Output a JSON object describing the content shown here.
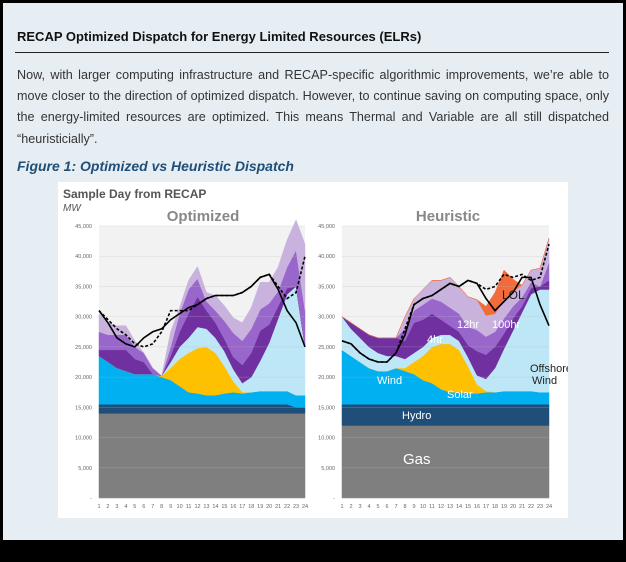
{
  "section_title": "RECAP Optimized Dispatch for Energy Limited Resources (ELRs)",
  "body_text": "Now, with larger computing infrastructure and RECAP-specific algorithmic improvements, we’re able to move closer to the direction of optimized dispatch. However, to continue saving on computing space, only the energy-limited resources are optimized. This means Thermal and Variable are all still dispatched “heuristicially”.",
  "figure_caption": "Figure 1: Optimized vs Heuristic Dispatch",
  "figure": {
    "heading": "Sample Day from RECAP",
    "unit": "MW",
    "colors": {
      "gas": "#7f7f7f",
      "hydro": "#1f4e79",
      "wind": "#00b0f0",
      "solar": "#ffc000",
      "offshore": "#bde6f7",
      "h4": "#7030a0",
      "h12": "#9966cc",
      "h100": "#c9b3de",
      "lol": "#f26b3a",
      "load": "#000000"
    }
  },
  "chart_data": [
    {
      "type": "area",
      "title": "Optimized",
      "ylabel": "MW",
      "ylim": [
        0,
        45000
      ],
      "yticks": [
        "45,000",
        "40,000",
        "35,000",
        "30,000",
        "25,000",
        "20,000",
        "15,000",
        "10,000",
        "5,000",
        "-"
      ],
      "x": [
        1,
        2,
        3,
        4,
        5,
        6,
        7,
        8,
        9,
        10,
        11,
        12,
        13,
        14,
        15,
        16,
        17,
        18,
        19,
        20,
        21,
        22,
        23,
        24
      ],
      "x_labels": [
        "1",
        "2",
        "3",
        "4",
        "5",
        "6",
        "7",
        "8",
        "9",
        "10",
        "11",
        "12",
        "13",
        "14",
        "15",
        "16",
        "17",
        "18",
        "19",
        "20",
        "21",
        "22",
        "23",
        "24"
      ],
      "series": [
        {
          "key": "gas",
          "values": [
            14000,
            14000,
            14000,
            14000,
            14000,
            14000,
            14000,
            14000,
            14000,
            14000,
            14000,
            14000,
            14000,
            14000,
            14000,
            14000,
            14000,
            14000,
            14000,
            14000,
            14000,
            14000,
            14000,
            14000
          ]
        },
        {
          "key": "hydro",
          "values": [
            1500,
            1500,
            1500,
            1500,
            1500,
            1500,
            1500,
            1500,
            1500,
            1500,
            1500,
            1500,
            1500,
            1500,
            1500,
            1500,
            1500,
            1500,
            1500,
            1500,
            1500,
            1500,
            1000,
            1000
          ]
        },
        {
          "key": "wind",
          "values": [
            8000,
            7000,
            6000,
            5500,
            5000,
            5000,
            5000,
            4500,
            4000,
            3000,
            2000,
            1800,
            1500,
            1500,
            1800,
            2000,
            1800,
            2000,
            2200,
            2200,
            2200,
            2200,
            2000,
            2000
          ]
        },
        {
          "key": "solar",
          "values": [
            0,
            0,
            0,
            0,
            0,
            0,
            0,
            200,
            2000,
            4500,
            6500,
            7500,
            8000,
            7000,
            4500,
            1800,
            200,
            0,
            0,
            0,
            0,
            0,
            0,
            0
          ]
        },
        {
          "key": "offshore",
          "values": [
            0,
            0,
            0,
            0,
            0,
            0,
            0,
            0,
            1000,
            2000,
            2500,
            3500,
            3000,
            2500,
            2500,
            2000,
            1500,
            2500,
            5000,
            8000,
            12000,
            16000,
            18000,
            8000
          ]
        },
        {
          "key": "h4",
          "values": [
            1000,
            2000,
            3000,
            3500,
            2500,
            2000,
            0,
            0,
            1000,
            2500,
            4000,
            5000,
            3000,
            2500,
            2000,
            2000,
            3000,
            4000,
            5000,
            3000,
            2000,
            1000,
            0,
            0
          ]
        },
        {
          "key": "h12",
          "values": [
            3000,
            2500,
            2500,
            2500,
            2000,
            1500,
            1000,
            0,
            1500,
            3000,
            4000,
            3000,
            1500,
            2000,
            3000,
            4000,
            4000,
            4000,
            3500,
            3500,
            2500,
            3500,
            6000,
            6000
          ]
        },
        {
          "key": "h100",
          "values": [
            3000,
            2000,
            1500,
            1500,
            1000,
            0,
            0,
            0,
            2500,
            1000,
            1500,
            2000,
            1500,
            2500,
            2500,
            2500,
            3000,
            3500,
            4500,
            3500,
            4000,
            4500,
            5000,
            11000
          ]
        }
      ],
      "load": [
        31000,
        29000,
        26500,
        25500,
        25000,
        26500,
        27500,
        28000,
        29500,
        30500,
        31500,
        32000,
        33000,
        33500,
        33500,
        33500,
        34000,
        35000,
        36500,
        37000,
        34500,
        31000,
        29000,
        25000
      ],
      "storage_charge": [
        31000,
        29500,
        28000,
        27000,
        25500,
        25000,
        25500,
        27500,
        31000,
        31000,
        31000,
        32000,
        33000,
        33500,
        33500,
        33500,
        34000,
        35000,
        36500,
        37000,
        35000,
        33000,
        34000,
        40000
      ]
    },
    {
      "type": "area",
      "title": "Heuristic",
      "ylabel": "MW",
      "ylim": [
        0,
        45000
      ],
      "yticks": [
        "45,000",
        "40,000",
        "35,000",
        "30,000",
        "25,000",
        "20,000",
        "15,000",
        "10,000",
        "5,000",
        "-"
      ],
      "x": [
        1,
        2,
        3,
        4,
        5,
        6,
        7,
        8,
        9,
        10,
        11,
        12,
        13,
        14,
        15,
        16,
        17,
        18,
        19,
        20,
        21,
        22,
        23,
        24
      ],
      "x_labels": [
        "1",
        "2",
        "3",
        "4",
        "5",
        "6",
        "7",
        "8",
        "9",
        "10",
        "11",
        "12",
        "13",
        "14",
        "15",
        "16",
        "17",
        "18",
        "19",
        "20",
        "21",
        "22",
        "23",
        "24"
      ],
      "series": [
        {
          "key": "gas",
          "values": [
            12000,
            12000,
            12000,
            12000,
            12000,
            12000,
            12000,
            12000,
            12000,
            12000,
            12000,
            12000,
            12000,
            12000,
            12000,
            12000,
            12000,
            12000,
            12000,
            12000,
            12000,
            12000,
            12000,
            12000
          ]
        },
        {
          "key": "hydro",
          "values": [
            3500,
            3500,
            3500,
            3500,
            3500,
            3500,
            3500,
            3500,
            3500,
            3500,
            3500,
            3500,
            3500,
            3500,
            3500,
            3500,
            3500,
            3500,
            3500,
            3500,
            3500,
            3500,
            3500,
            3500
          ]
        },
        {
          "key": "wind",
          "values": [
            9000,
            8000,
            7000,
            6000,
            5500,
            5500,
            6000,
            5500,
            5000,
            4000,
            3500,
            2500,
            2000,
            2000,
            1800,
            1800,
            2000,
            2000,
            2200,
            2200,
            2200,
            2200,
            2000,
            2000
          ]
        },
        {
          "key": "solar",
          "values": [
            0,
            0,
            0,
            0,
            0,
            0,
            0,
            500,
            2000,
            4000,
            6000,
            7500,
            8000,
            7000,
            4500,
            1500,
            200,
            0,
            0,
            0,
            0,
            0,
            0,
            0
          ]
        },
        {
          "key": "offshore",
          "values": [
            5500,
            4500,
            4000,
            3500,
            3000,
            2500,
            2000,
            1500,
            1500,
            1500,
            1500,
            1500,
            1500,
            1500,
            1500,
            1500,
            2000,
            4000,
            7000,
            10000,
            13000,
            16000,
            17000,
            17000
          ]
        },
        {
          "key": "h4",
          "values": [
            0,
            1000,
            1500,
            2000,
            2500,
            3000,
            3000,
            3000,
            5000,
            4500,
            4000,
            2500,
            1500,
            1500,
            2000,
            4000,
            4000,
            3500,
            2500,
            2000,
            1000,
            1000,
            500,
            1500
          ]
        },
        {
          "key": "h12",
          "values": [
            0,
            0,
            0,
            0,
            0,
            0,
            0,
            2000,
            2000,
            2500,
            2500,
            3000,
            3000,
            3000,
            3000,
            3500,
            3000,
            2500,
            2500,
            2000,
            1500,
            1000,
            0,
            3000
          ]
        },
        {
          "key": "h100",
          "values": [
            0,
            0,
            0,
            0,
            0,
            0,
            0,
            2000,
            2000,
            2500,
            3000,
            3500,
            5000,
            4500,
            5000,
            5000,
            3500,
            3000,
            3000,
            2500,
            2000,
            2000,
            3000,
            4000
          ]
        },
        {
          "key": "lol",
          "values": [
            0,
            0,
            0,
            0,
            0,
            0,
            0,
            0,
            0,
            0,
            0,
            0,
            0,
            0,
            0,
            0,
            1500,
            3500,
            5000,
            2000,
            0,
            0,
            0,
            0
          ]
        }
      ],
      "load": [
        26000,
        25500,
        24000,
        23000,
        22500,
        22500,
        24000,
        27000,
        32000,
        33000,
        33500,
        34500,
        35500,
        35000,
        36000,
        35500,
        33000,
        31000,
        32500,
        34000,
        36500,
        36500,
        32000,
        28500
      ],
      "storage_charge": [
        26000,
        25500,
        24000,
        23000,
        22500,
        22500,
        24000,
        28000,
        32000,
        33000,
        33500,
        34500,
        35500,
        35000,
        36000,
        35500,
        34500,
        35000,
        37000,
        36500,
        37000,
        36000,
        36500,
        42000
      ],
      "annotations": {
        "gas": "Gas",
        "hydro": "Hydro",
        "wind": "Wind",
        "solar": "Solar",
        "h4": "4hr",
        "h12": "12hr",
        "h100": "100hr",
        "lol": "LOL",
        "offshore": "Offshore Wind"
      }
    }
  ]
}
